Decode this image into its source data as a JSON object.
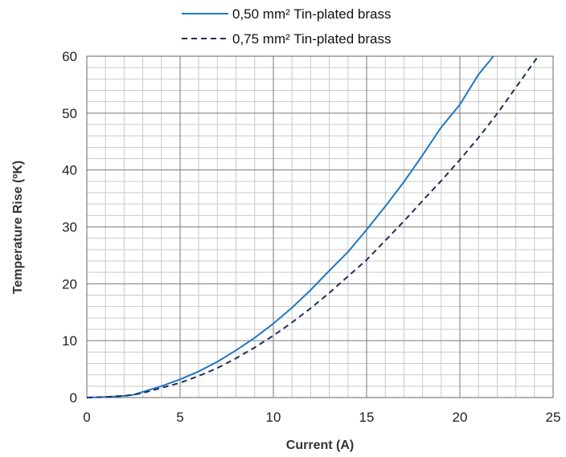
{
  "chart_data": {
    "type": "line",
    "title": "",
    "xlabel": "Current (A)",
    "ylabel": "Temperature Rise (ºK)",
    "xlim": [
      0,
      25
    ],
    "ylim": [
      0,
      60
    ],
    "x_ticks": [
      "0",
      "5",
      "10",
      "15",
      "20",
      "25"
    ],
    "y_ticks": [
      "0",
      "10",
      "20",
      "30",
      "40",
      "50",
      "60"
    ],
    "grid": true,
    "legend_position": "top",
    "series": [
      {
        "name": "0,50 mm² Tin-plated brass",
        "style": "solid",
        "color": "#1f77c4",
        "x": [
          0,
          1,
          2,
          2.5,
          3,
          4,
          5,
          6,
          7,
          8,
          9,
          10,
          11,
          12,
          13,
          14,
          15,
          16,
          17,
          18,
          19,
          20,
          21,
          21.8
        ],
        "y": [
          0,
          0.1,
          0.3,
          0.5,
          1.0,
          2.0,
          3.2,
          4.6,
          6.3,
          8.3,
          10.5,
          13.0,
          15.8,
          18.9,
          22.3,
          25.6,
          29.5,
          33.6,
          37.9,
          42.6,
          47.5,
          51.5,
          56.8,
          60
        ]
      },
      {
        "name": "0,75 mm² Tin-plated brass",
        "style": "dashed",
        "color": "#1f2f5c",
        "x": [
          0,
          1,
          2,
          2.5,
          3,
          4,
          5,
          6,
          7,
          8,
          9,
          10,
          11,
          12,
          13,
          14,
          15,
          16,
          17,
          18,
          19,
          20,
          21,
          22,
          23,
          24.2
        ],
        "y": [
          0,
          0.1,
          0.3,
          0.5,
          0.8,
          1.7,
          2.6,
          3.8,
          5.2,
          6.9,
          8.8,
          10.9,
          13.2,
          15.7,
          18.4,
          21.3,
          24.2,
          27.6,
          31.0,
          34.6,
          38.1,
          41.8,
          45.7,
          49.9,
          54.5,
          60
        ]
      }
    ]
  }
}
